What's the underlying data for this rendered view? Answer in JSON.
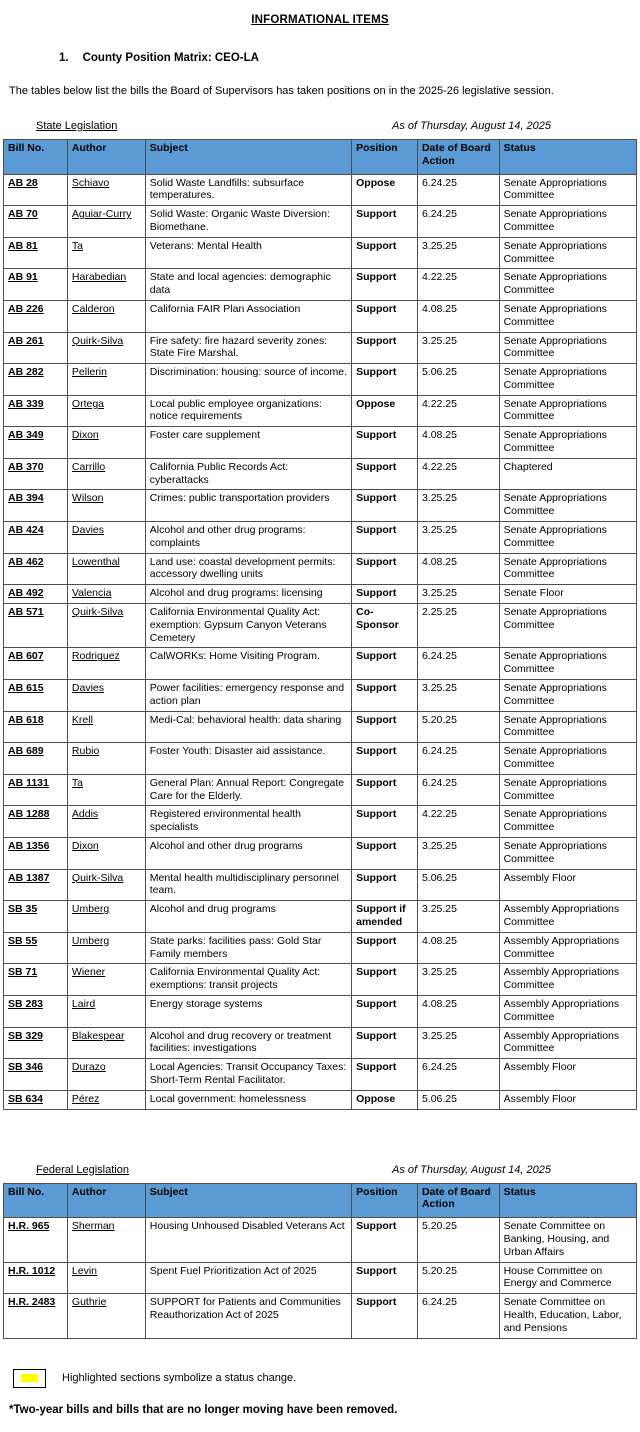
{
  "page": {
    "title": "INFORMATIONAL ITEMS",
    "item_number": "1.",
    "item_heading": "County Position Matrix:  CEO-LA",
    "intro": "The tables below list the bills the Board of Supervisors has taken positions on in the 2025-26 legislative session.",
    "legend_text": "Highlighted sections symbolize a status change.",
    "footnote": "*Two-year bills and bills that are no longer moving have been removed.",
    "header_bg": "#5B9BD5",
    "highlight_color": "#FFFF00"
  },
  "state_section": {
    "label": "State Legislation",
    "as_of": "As of Thursday, August 14, 2025"
  },
  "federal_section": {
    "label": "Federal Legislation",
    "as_of": "As of Thursday, August 14, 2025"
  },
  "columns": [
    "Bill No.",
    "Author",
    "Subject",
    "Position",
    "Date of Board Action",
    "Status"
  ],
  "state_bills": [
    {
      "bill": "AB 28",
      "author": "Schiavo",
      "subject": "Solid Waste Landfills: subsurface temperatures.",
      "position": "Oppose",
      "date": "6.24.25",
      "status": "Senate Appropriations Committee"
    },
    {
      "bill": "AB 70",
      "author": "Aguiar-Curry",
      "subject": "Solid Waste: Organic Waste Diversion: Biomethane.",
      "position": "Support",
      "date": "6.24.25",
      "status": "Senate Appropriations Committee"
    },
    {
      "bill": "AB 81",
      "author": "Ta",
      "subject": "Veterans: Mental Health",
      "position": "Support",
      "date": "3.25.25",
      "status": "Senate Appropriations Committee"
    },
    {
      "bill": "AB 91",
      "author": "Harabedian",
      "subject": "State and local agencies: demographic data",
      "position": "Support",
      "date": "4.22.25",
      "status": "Senate Appropriations Committee"
    },
    {
      "bill": "AB 226",
      "author": "Calderon",
      "subject": "California FAIR Plan Association",
      "position": "Support",
      "date": "4.08.25",
      "status": "Senate Appropriations Committee"
    },
    {
      "bill": "AB 261",
      "author": "Quirk-Silva",
      "subject": "Fire safety: fire hazard severity zones: State Fire Marshal.",
      "position": "Support",
      "date": "3.25.25",
      "status": "Senate Appropriations Committee"
    },
    {
      "bill": "AB 282",
      "author": "Pellerin",
      "subject": "Discrimination: housing: source of income.",
      "position": "Support",
      "date": "5.06.25",
      "status": "Senate Appropriations Committee"
    },
    {
      "bill": "AB 339",
      "author": "Ortega",
      "subject": "Local public employee organizations: notice requirements",
      "position": "Oppose",
      "date": "4.22.25",
      "status": "Senate Appropriations Committee"
    },
    {
      "bill": "AB 349",
      "author": "Dixon",
      "subject": "Foster care supplement",
      "position": "Support",
      "date": "4.08.25",
      "status": "Senate Appropriations Committee"
    },
    {
      "bill": "AB 370",
      "author": "Carrillo",
      "subject": "California Public Records Act: cyberattacks",
      "position": "Support",
      "date": "4.22.25",
      "status": "Chaptered"
    },
    {
      "bill": "AB 394",
      "author": "Wilson",
      "subject": "Crimes: public transportation providers",
      "position": "Support",
      "date": "3.25.25",
      "status": "Senate Appropriations Committee"
    },
    {
      "bill": "AB 424",
      "author": "Davies",
      "subject": "Alcohol and other drug programs: complaints",
      "position": "Support",
      "date": "3.25.25",
      "status": "Senate Appropriations Committee"
    },
    {
      "bill": "AB 462",
      "author": "Lowenthal",
      "subject": "Land use: coastal development permits: accessory dwelling units",
      "position": "Support",
      "date": "4.08.25",
      "status": "Senate Appropriations Committee"
    },
    {
      "bill": "AB 492",
      "author": "Valencia",
      "subject": "Alcohol and drug programs: licensing",
      "position": "Support",
      "date": "3.25.25",
      "status": "Senate Floor"
    },
    {
      "bill": "AB 571",
      "author": "Quirk-Silva",
      "subject": "California Environmental Quality Act: exemption: Gypsum Canyon Veterans Cemetery",
      "position": "Co-Sponsor",
      "date": "2.25.25",
      "status": "Senate Appropriations Committee"
    },
    {
      "bill": "AB 607",
      "author": "Rodriguez",
      "subject": "CalWORKs: Home Visiting Program.",
      "position": "Support",
      "date": "6.24.25",
      "status": "Senate Appropriations Committee"
    },
    {
      "bill": "AB 615",
      "author": "Davies",
      "subject": "Power facilities: emergency response and action plan",
      "position": "Support",
      "date": "3.25.25",
      "status": "Senate Appropriations Committee"
    },
    {
      "bill": "AB 618",
      "author": "Krell",
      "subject": "Medi-Cal: behavioral health: data sharing",
      "position": "Support",
      "date": "5.20.25",
      "status": "Senate Appropriations Committee"
    },
    {
      "bill": "AB 689",
      "author": "Rubio",
      "subject": "Foster Youth: Disaster aid assistance.",
      "position": "Support",
      "date": "6.24.25",
      "status": "Senate Appropriations Committee"
    },
    {
      "bill": "AB 1131",
      "author": "Ta",
      "subject": "General Plan: Annual Report: Congregate Care for the Elderly.",
      "position": "Support",
      "date": "6.24.25",
      "status": "Senate Appropriations Committee"
    },
    {
      "bill": "AB 1288",
      "author": "Addis",
      "subject": "Registered environmental health specialists",
      "position": "Support",
      "date": "4.22.25",
      "status": "Senate Appropriations Committee"
    },
    {
      "bill": "AB 1356",
      "author": "Dixon",
      "subject": "Alcohol and other drug programs",
      "position": "Support",
      "date": "3.25.25",
      "status": "Senate Appropriations Committee"
    },
    {
      "bill": "AB 1387",
      "author": "Quirk-Silva",
      "subject": "Mental health multidisciplinary personnel team.",
      "position": "Support",
      "date": "5.06.25",
      "status": "Assembly Floor"
    },
    {
      "bill": "SB 35",
      "author": "Umberg",
      "subject": "Alcohol and drug programs",
      "position": "Support if amended",
      "date": "3.25.25",
      "status": "Assembly Appropriations Committee"
    },
    {
      "bill": "SB 55",
      "author": "Umberg",
      "subject": "State parks: facilities pass: Gold Star Family members",
      "position": "Support",
      "date": "4.08.25",
      "status": "Assembly Appropriations Committee"
    },
    {
      "bill": "SB 71",
      "author": "Wiener",
      "subject": "California Environmental Quality Act: exemptions: transit projects",
      "position": "Support",
      "date": "3.25.25",
      "status": "Assembly Appropriations Committee"
    },
    {
      "bill": "SB 283",
      "author": "Laird",
      "subject": "Energy storage systems",
      "position": "Support",
      "date": "4.08.25",
      "status": "Assembly Appropriations Committee"
    },
    {
      "bill": "SB 329",
      "author": "Blakespear",
      "subject": "Alcohol and drug recovery or treatment facilities: investigations",
      "position": "Support",
      "date": "3.25.25",
      "status": "Assembly Appropriations Committee"
    },
    {
      "bill": "SB 346",
      "author": "Durazo",
      "subject": "Local Agencies: Transit Occupancy Taxes: Short-Term Rental Facilitator.",
      "position": "Support",
      "date": "6.24.25",
      "status": "Assembly Floor"
    },
    {
      "bill": "SB 634",
      "author": "Pérez",
      "subject": "Local government: homelessness",
      "position": "Oppose",
      "date": "5.06.25",
      "status": "Assembly Floor"
    }
  ],
  "federal_bills": [
    {
      "bill": "H.R. 965",
      "author": "Sherman",
      "subject": "Housing Unhoused Disabled Veterans Act",
      "position": "Support",
      "date": "5.20.25",
      "status": "Senate Committee on Banking, Housing, and Urban Affairs"
    },
    {
      "bill": "H.R. 1012",
      "author": "Levin",
      "subject": "Spent Fuel Prioritization Act of 2025",
      "position": "Support",
      "date": "5.20.25",
      "status": "House Committee on Energy and Commerce"
    },
    {
      "bill": "H.R. 2483",
      "author": "Guthrie",
      "subject": "SUPPORT for Patients and Communities Reauthorization Act of 2025",
      "position": "Support",
      "date": "6.24.25",
      "status": "Senate Committee on Health, Education, Labor, and Pensions"
    }
  ]
}
